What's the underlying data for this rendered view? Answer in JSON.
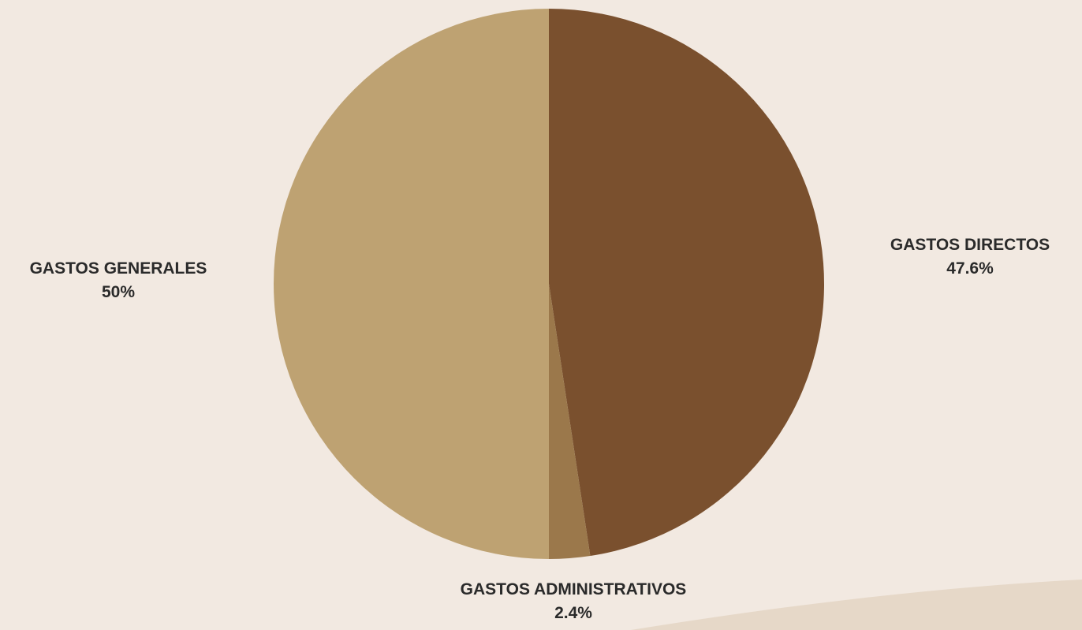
{
  "chart_data": {
    "type": "pie",
    "title": "",
    "slices": [
      {
        "label": "GASTOS DIRECTOS",
        "value": 47.6,
        "display": "47.6%",
        "color": "#7a502e"
      },
      {
        "label": "GASTOS ADMINISTRATIVOS",
        "value": 2.4,
        "display": "2.4%",
        "color": "#9b784b"
      },
      {
        "label": "GASTOS GENERALES",
        "value": 50,
        "display": "50%",
        "color": "#bea272"
      }
    ],
    "start_angle": "12 o'clock",
    "direction": "clockwise",
    "legend": "none",
    "label_placement": "outside"
  },
  "colors": {
    "background": "#f2e9e1",
    "decorative_shape": "#e6d8c8",
    "label_text": "#2a2a2a"
  }
}
